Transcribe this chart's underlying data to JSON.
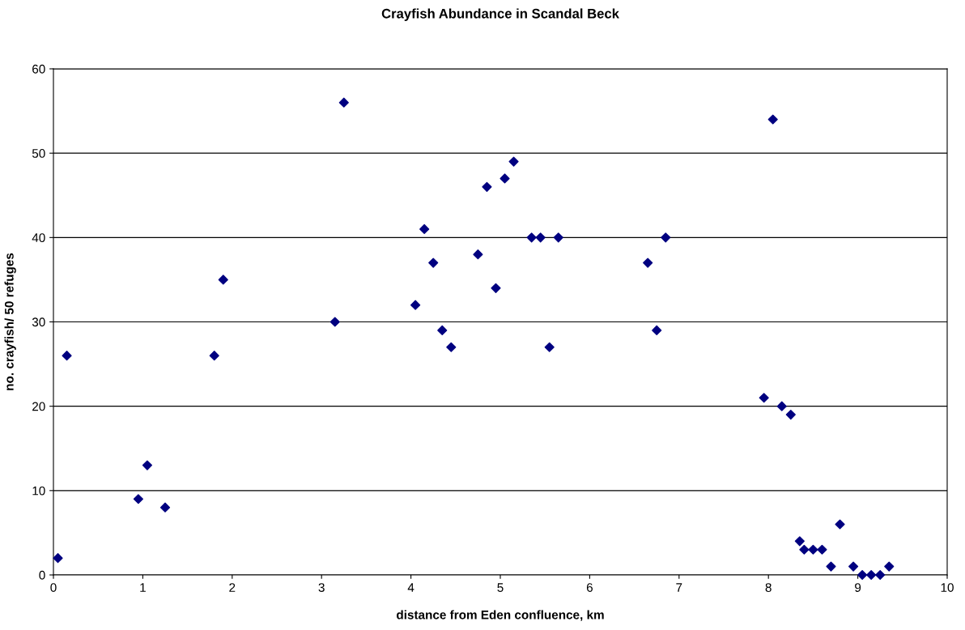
{
  "chart_data": {
    "type": "scatter",
    "title": "Crayfish Abundance in Scandal Beck",
    "xlabel": "distance from Eden confluence, km",
    "ylabel": "no. crayfish/ 50 refuges",
    "x": [
      0.05,
      0.15,
      0.95,
      1.05,
      1.25,
      1.8,
      1.9,
      3.15,
      3.25,
      4.05,
      4.15,
      4.25,
      4.35,
      4.45,
      4.75,
      4.85,
      4.95,
      5.05,
      5.15,
      5.35,
      5.45,
      5.55,
      5.65,
      6.65,
      6.75,
      6.85,
      7.95,
      8.05,
      8.15,
      8.25,
      8.35,
      8.4,
      8.5,
      8.6,
      8.7,
      8.8,
      8.95,
      9.05,
      9.15,
      9.25,
      9.35
    ],
    "values": [
      2,
      26,
      9,
      13,
      8,
      26,
      35,
      30,
      56,
      32,
      41,
      37,
      29,
      27,
      38,
      46,
      34,
      47,
      49,
      40,
      40,
      27,
      40,
      37,
      29,
      40,
      21,
      54,
      20,
      19,
      4,
      3,
      3,
      3,
      1,
      6,
      1,
      0,
      0,
      0,
      1
    ],
    "color": "#000080",
    "marker": "diamond",
    "xlim": [
      0,
      10
    ],
    "xticks": [
      0,
      1,
      2,
      3,
      4,
      5,
      6,
      7,
      8,
      9,
      10
    ],
    "ylim": [
      0,
      60
    ],
    "yticks": [
      0,
      10,
      20,
      30,
      40,
      50,
      60
    ],
    "grid": "y"
  }
}
